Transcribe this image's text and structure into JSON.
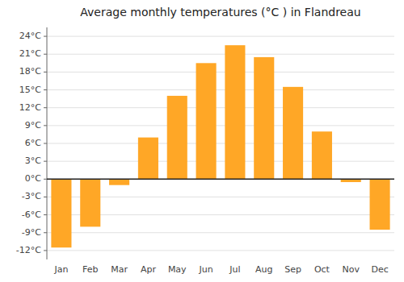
{
  "chart_data": {
    "type": "bar",
    "title": "Average monthly temperatures (°C ) in Flandreau",
    "categories": [
      "Jan",
      "Feb",
      "Mar",
      "Apr",
      "May",
      "Jun",
      "Jul",
      "Aug",
      "Sep",
      "Oct",
      "Nov",
      "Dec"
    ],
    "values": [
      -11.5,
      -8.0,
      -1.0,
      7.0,
      14.0,
      19.5,
      22.5,
      20.5,
      15.5,
      8.0,
      -0.5,
      -8.5
    ],
    "color": "#FFA726",
    "ylim": [
      -13.5,
      25.5
    ],
    "yticks": [
      {
        "value": -12,
        "label": "-12°C"
      },
      {
        "value": -9,
        "label": "-9°C"
      },
      {
        "value": -6,
        "label": "-6°C"
      },
      {
        "value": -3,
        "label": "-3°C"
      },
      {
        "value": 0,
        "label": "0°C"
      },
      {
        "value": 3,
        "label": "3°C"
      },
      {
        "value": 6,
        "label": "6°C"
      },
      {
        "value": 9,
        "label": "9°C"
      },
      {
        "value": 12,
        "label": "12°C"
      },
      {
        "value": 15,
        "label": "15°C"
      },
      {
        "value": 18,
        "label": "18°C"
      },
      {
        "value": 21,
        "label": "21°C"
      },
      {
        "value": 24,
        "label": "24°C"
      }
    ],
    "grid": true
  }
}
